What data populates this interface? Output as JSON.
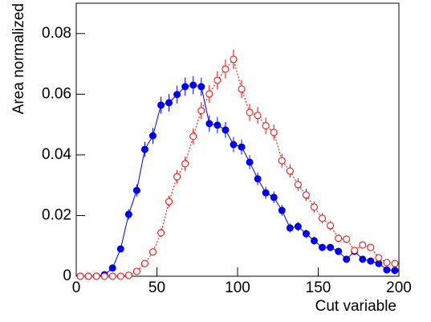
{
  "chart_data": {
    "type": "line",
    "x_label": "Cut variable",
    "y_label": "Area normalized",
    "x": [
      2.5,
      7.5,
      12.5,
      17.5,
      22.5,
      27.5,
      32.5,
      37.5,
      42.5,
      47.5,
      52.5,
      57.5,
      62.5,
      67.5,
      72.5,
      77.5,
      82.5,
      87.5,
      92.5,
      97.5,
      102.5,
      107.5,
      112.5,
      117.5,
      122.5,
      127.5,
      132.5,
      137.5,
      142.5,
      147.5,
      152.5,
      157.5,
      162.5,
      167.5,
      172.5,
      177.5,
      182.5,
      187.5,
      192.5,
      197.5
    ],
    "series": [
      {
        "color": "#0000ee",
        "marker": "filled",
        "dash": "solid",
        "values": [
          0,
          0,
          0,
          0.0005,
          0.0027,
          0.009,
          0.0204,
          0.0283,
          0.0418,
          0.0463,
          0.0564,
          0.0572,
          0.0599,
          0.0625,
          0.063,
          0.0625,
          0.0503,
          0.0498,
          0.0482,
          0.0434,
          0.0426,
          0.0376,
          0.0321,
          0.0275,
          0.026,
          0.0217,
          0.0159,
          0.0164,
          0.014,
          0.0117,
          0.0095,
          0.0095,
          0.0082,
          0.0056,
          0.0082,
          0.0056,
          0.005,
          0.0042,
          0.0021,
          0.0019
        ],
        "errors": [
          0,
          0,
          0,
          0.0003,
          0.0006,
          0.0011,
          0.0017,
          0.002,
          0.0025,
          0.0026,
          0.0028,
          0.0029,
          0.0029,
          0.003,
          0.003,
          0.003,
          0.0027,
          0.0027,
          0.0026,
          0.0025,
          0.0025,
          0.0023,
          0.0021,
          0.002,
          0.0019,
          0.0018,
          0.0015,
          0.0015,
          0.0014,
          0.0013,
          0.0012,
          0.0012,
          0.0011,
          0.0009,
          0.0011,
          0.0009,
          0.0008,
          0.0008,
          0.0005,
          0.0005
        ]
      },
      {
        "color": "#ee0000",
        "marker": "open",
        "dash": "dotted",
        "values": [
          0,
          0,
          0,
          0,
          0,
          0,
          0.0003,
          0.0016,
          0.0042,
          0.008,
          0.0143,
          0.0246,
          0.0328,
          0.0371,
          0.0461,
          0.0546,
          0.0601,
          0.0646,
          0.0683,
          0.0715,
          0.0617,
          0.054,
          0.053,
          0.0496,
          0.0474,
          0.0381,
          0.0347,
          0.0302,
          0.0268,
          0.0228,
          0.0191,
          0.0167,
          0.0125,
          0.0122,
          0.0085,
          0.0103,
          0.0095,
          0.0061,
          0.0045,
          0.0042
        ],
        "errors": [
          0,
          0,
          0,
          0,
          0,
          0,
          0.0002,
          0.0005,
          0.0008,
          0.0011,
          0.0014,
          0.0019,
          0.0022,
          0.0023,
          0.0026,
          0.0028,
          0.0029,
          0.003,
          0.0031,
          0.0032,
          0.003,
          0.0028,
          0.0028,
          0.0027,
          0.0026,
          0.0023,
          0.0022,
          0.0021,
          0.002,
          0.0018,
          0.0017,
          0.0016,
          0.0013,
          0.0013,
          0.0011,
          0.0012,
          0.0012,
          0.0009,
          0.0008,
          0.0008
        ]
      }
    ],
    "xlim": [
      0,
      200
    ],
    "xticks": [
      0,
      50,
      100,
      150,
      200
    ],
    "ylim": [
      0,
      0.09
    ],
    "yticks": [
      0,
      0.02,
      0.04,
      0.06,
      0.08
    ]
  }
}
